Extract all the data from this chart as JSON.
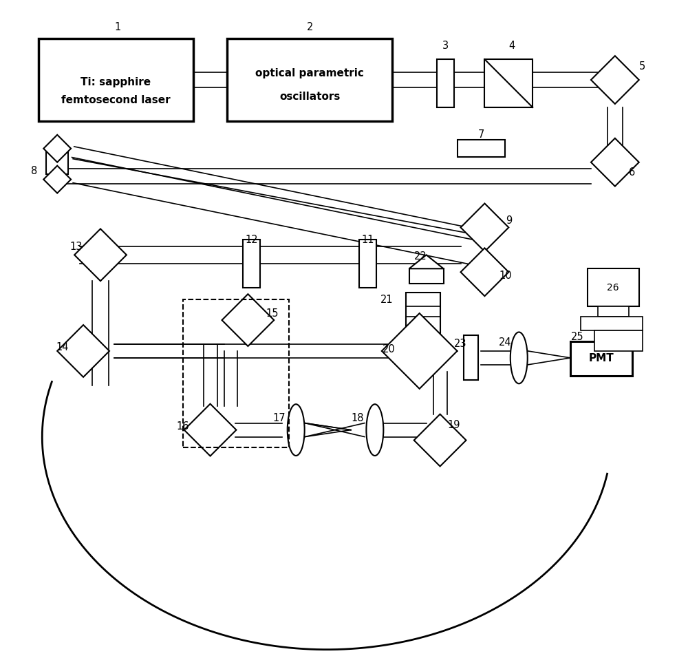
{
  "bg_color": "#ffffff",
  "line_color": "#000000",
  "fig_w": 10.0,
  "fig_h": 9.69,
  "box1_text1": "Ti: sapphire",
  "box1_text2": "femtosecond laser",
  "box2_text1": "optical parametric",
  "box2_text2": "oscillators",
  "pmt_text": "PMT"
}
